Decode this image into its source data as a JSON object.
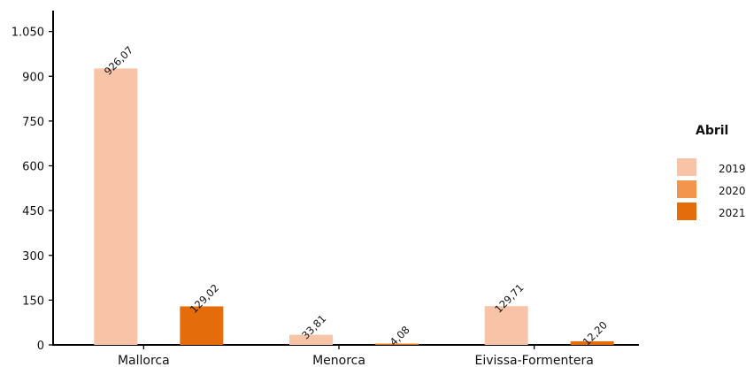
{
  "chart_data": {
    "type": "bar",
    "categories": [
      "Mallorca",
      "Menorca",
      "Eivissa-Formentera"
    ],
    "series": [
      {
        "name": "2019",
        "color": "#f8c3a7",
        "values": [
          926.07,
          33.81,
          129.71
        ],
        "labels": [
          "926,07",
          "33,81",
          "129,71"
        ]
      },
      {
        "name": "2020",
        "color": "#f3954c",
        "values": [
          null,
          null,
          null
        ],
        "labels": [
          "",
          "",
          ""
        ]
      },
      {
        "name": "2021",
        "color": "#e46c0a",
        "values": [
          129.02,
          4.08,
          12.2
        ],
        "labels": [
          "129,02",
          "4,08",
          "12,20"
        ]
      }
    ],
    "ylim": [
      0,
      1120
    ],
    "yticks": [
      0,
      150,
      300,
      450,
      600,
      750,
      900,
      1050
    ],
    "ytick_labels": [
      "0",
      "150",
      "300",
      "450",
      "600",
      "750",
      "900",
      "1.050"
    ],
    "xlabel": "",
    "ylabel": "",
    "legend": {
      "title": "Abril",
      "position": "right"
    },
    "grid": false
  }
}
